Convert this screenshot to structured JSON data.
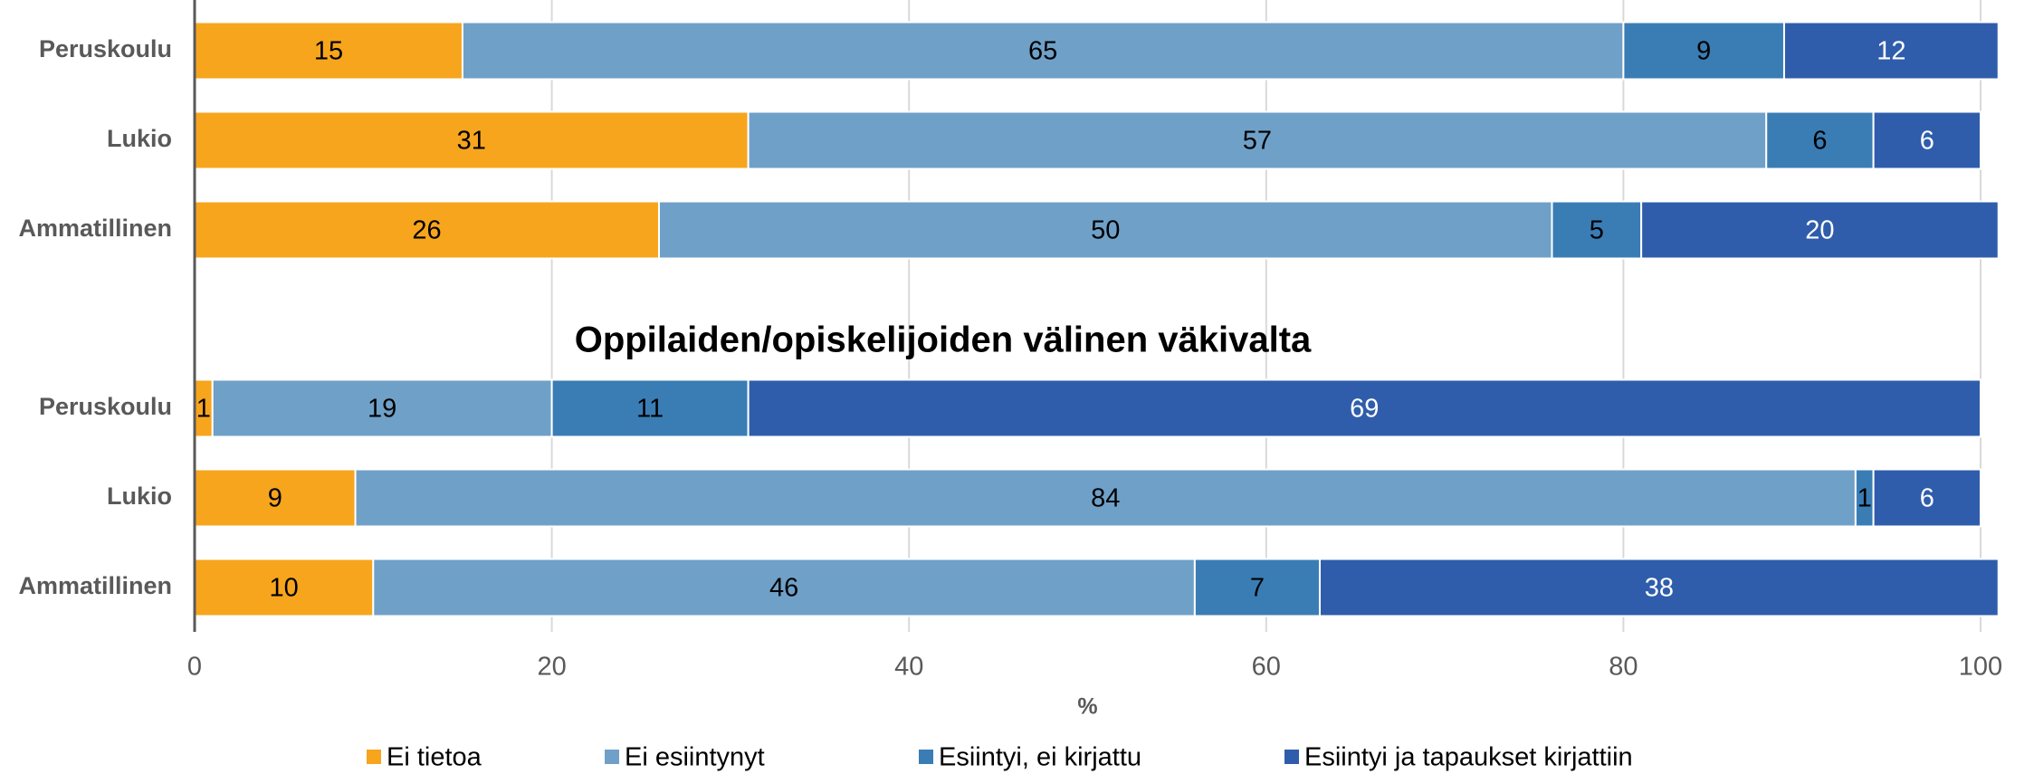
{
  "chart_data": {
    "type": "stacked-bar-horizontal",
    "series": [
      {
        "name": "Ei tietoa",
        "color": "#f6a51d"
      },
      {
        "name": "Ei esiintynyt",
        "color": "#6fa0c8"
      },
      {
        "name": "Esiintyi, ei kirjattu",
        "color": "#3a7db5"
      },
      {
        "name": "Esiintyi ja tapaukset kirjattiin",
        "color": "#2f5dab"
      }
    ],
    "panels": [
      {
        "categories": [
          "Peruskoulu",
          "Lukio",
          "Ammatillinen"
        ],
        "values": [
          [
            15,
            31,
            26
          ],
          [
            65,
            57,
            50
          ],
          [
            9,
            6,
            5
          ],
          [
            12,
            6,
            20
          ]
        ]
      },
      {
        "title": "Oppilaiden/opiskelijoiden välinen väkivalta",
        "categories": [
          "Peruskoulu",
          "Lukio",
          "Ammatillinen"
        ],
        "values": [
          [
            1,
            9,
            10
          ],
          [
            19,
            84,
            46
          ],
          [
            11,
            1,
            7
          ],
          [
            69,
            6,
            38
          ]
        ]
      }
    ],
    "xlabel": "%",
    "xlim": [
      0,
      100
    ],
    "xticks": [
      0,
      20,
      40,
      60,
      80,
      100
    ],
    "grid": true
  }
}
